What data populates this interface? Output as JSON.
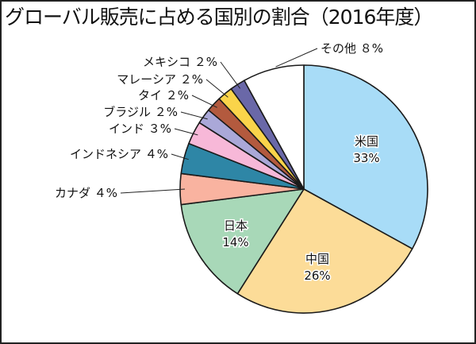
{
  "chart_data": {
    "type": "pie",
    "title": "グローバル販売に占める国別の割合（2016年度）",
    "unit": "%",
    "start": "top",
    "direction": "clockwise",
    "slices": [
      {
        "name": "米国",
        "value": 33,
        "label": "米国",
        "pct": "33%",
        "color": "#a8dcf7",
        "inside": true
      },
      {
        "name": "中国",
        "value": 26,
        "label": "中国",
        "pct": "26%",
        "color": "#fcdc98",
        "inside": true
      },
      {
        "name": "日本",
        "value": 14,
        "label": "日本",
        "pct": "14%",
        "color": "#a8d8b8",
        "inside": true
      },
      {
        "name": "カナダ",
        "value": 4,
        "label": "カナダ ４%",
        "color": "#f9b3a0",
        "inside": false
      },
      {
        "name": "インドネシア",
        "value": 4,
        "label": "インドネシア ４%",
        "color": "#2e86a6",
        "inside": false
      },
      {
        "name": "インド",
        "value": 3,
        "label": "インド ３%",
        "color": "#f7b8d8",
        "inside": false
      },
      {
        "name": "ブラジル",
        "value": 2,
        "label": "ブラジル ２%",
        "color": "#aaa8d8",
        "inside": false
      },
      {
        "name": "タイ",
        "value": 2,
        "label": "タイ ２%",
        "color": "#b35a3e",
        "inside": false
      },
      {
        "name": "マレーシア",
        "value": 2,
        "label": "マレーシア ２%",
        "color": "#fad44a",
        "inside": false
      },
      {
        "name": "メキシコ",
        "value": 2,
        "label": "メキシコ ２%",
        "color": "#6a68a8",
        "inside": false
      },
      {
        "name": "その他",
        "value": 8,
        "label": "その他 ８%",
        "color": "#ffffff",
        "inside": false
      }
    ]
  }
}
